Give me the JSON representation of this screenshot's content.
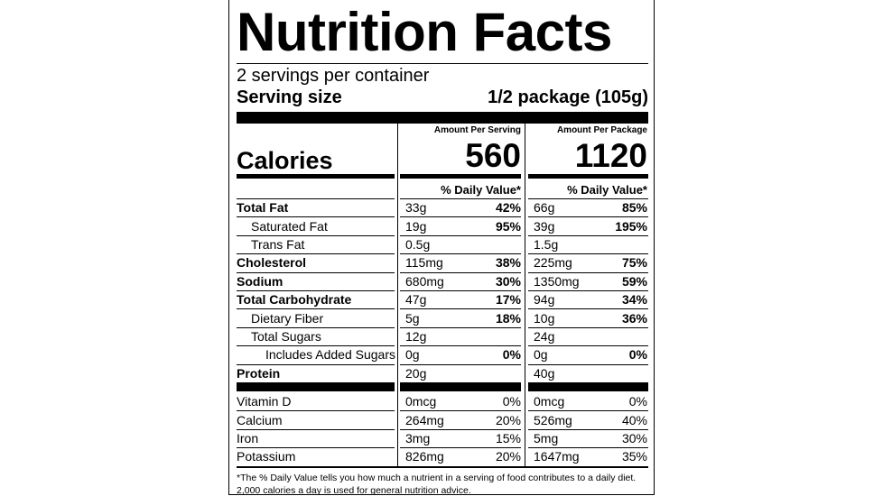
{
  "title": "Nutrition Facts",
  "servings": "2 servings per container",
  "serving_size": {
    "label": "Serving size",
    "value": "1/2 package (105g)"
  },
  "calories": {
    "label": "Calories",
    "columns": [
      {
        "header": "Amount Per Serving",
        "value": "560"
      },
      {
        "header": "Amount Per Package",
        "value": "1120"
      }
    ]
  },
  "dv_header": "% Daily Value*",
  "nutrients": [
    {
      "name": "Total Fat",
      "bold": true,
      "indent": 0,
      "amounts": [
        "33g",
        "66g"
      ],
      "dv": [
        "42%",
        "85%"
      ]
    },
    {
      "name": "Saturated Fat",
      "bold": false,
      "indent": 1,
      "amounts": [
        "19g",
        "39g"
      ],
      "dv": [
        "95%",
        "195%"
      ]
    },
    {
      "name": "Trans Fat",
      "bold": false,
      "indent": 1,
      "amounts": [
        "0.5g",
        "1.5g"
      ],
      "dv": null
    },
    {
      "name": "Cholesterol",
      "bold": true,
      "indent": 0,
      "amounts": [
        "115mg",
        "225mg"
      ],
      "dv": [
        "38%",
        "75%"
      ]
    },
    {
      "name": "Sodium",
      "bold": true,
      "indent": 0,
      "amounts": [
        "680mg",
        "1350mg"
      ],
      "dv": [
        "30%",
        "59%"
      ]
    },
    {
      "name": "Total Carbohydrate",
      "bold": true,
      "indent": 0,
      "amounts": [
        "47g",
        "94g"
      ],
      "dv": [
        "17%",
        "34%"
      ]
    },
    {
      "name": "Dietary Fiber",
      "bold": false,
      "indent": 1,
      "amounts": [
        "5g",
        "10g"
      ],
      "dv": [
        "18%",
        "36%"
      ]
    },
    {
      "name": "Total Sugars",
      "bold": false,
      "indent": 1,
      "amounts": [
        "12g",
        "24g"
      ],
      "dv": null
    },
    {
      "name": "Includes Added Sugars",
      "bold": false,
      "indent": 2,
      "amounts": [
        "0g",
        "0g"
      ],
      "dv": [
        "0%",
        "0%"
      ]
    },
    {
      "name": "Protein",
      "bold": true,
      "indent": 0,
      "amounts": [
        "20g",
        "40g"
      ],
      "dv": null
    }
  ],
  "vitamins": [
    {
      "name": "Vitamin D",
      "amounts": [
        "0mcg",
        "0mcg"
      ],
      "dv": [
        "0%",
        "0%"
      ]
    },
    {
      "name": "Calcium",
      "amounts": [
        "264mg",
        "526mg"
      ],
      "dv": [
        "20%",
        "40%"
      ]
    },
    {
      "name": "Iron",
      "amounts": [
        "3mg",
        "5mg"
      ],
      "dv": [
        "15%",
        "30%"
      ]
    },
    {
      "name": "Potassium",
      "amounts": [
        "826mg",
        "1647mg"
      ],
      "dv": [
        "20%",
        "35%"
      ]
    }
  ],
  "footnote": [
    "*The % Daily Value tells you how much a nutrient in a serving of food contributes to a daily diet.",
    "2,000 calories a day is used for general nutrition advice."
  ]
}
